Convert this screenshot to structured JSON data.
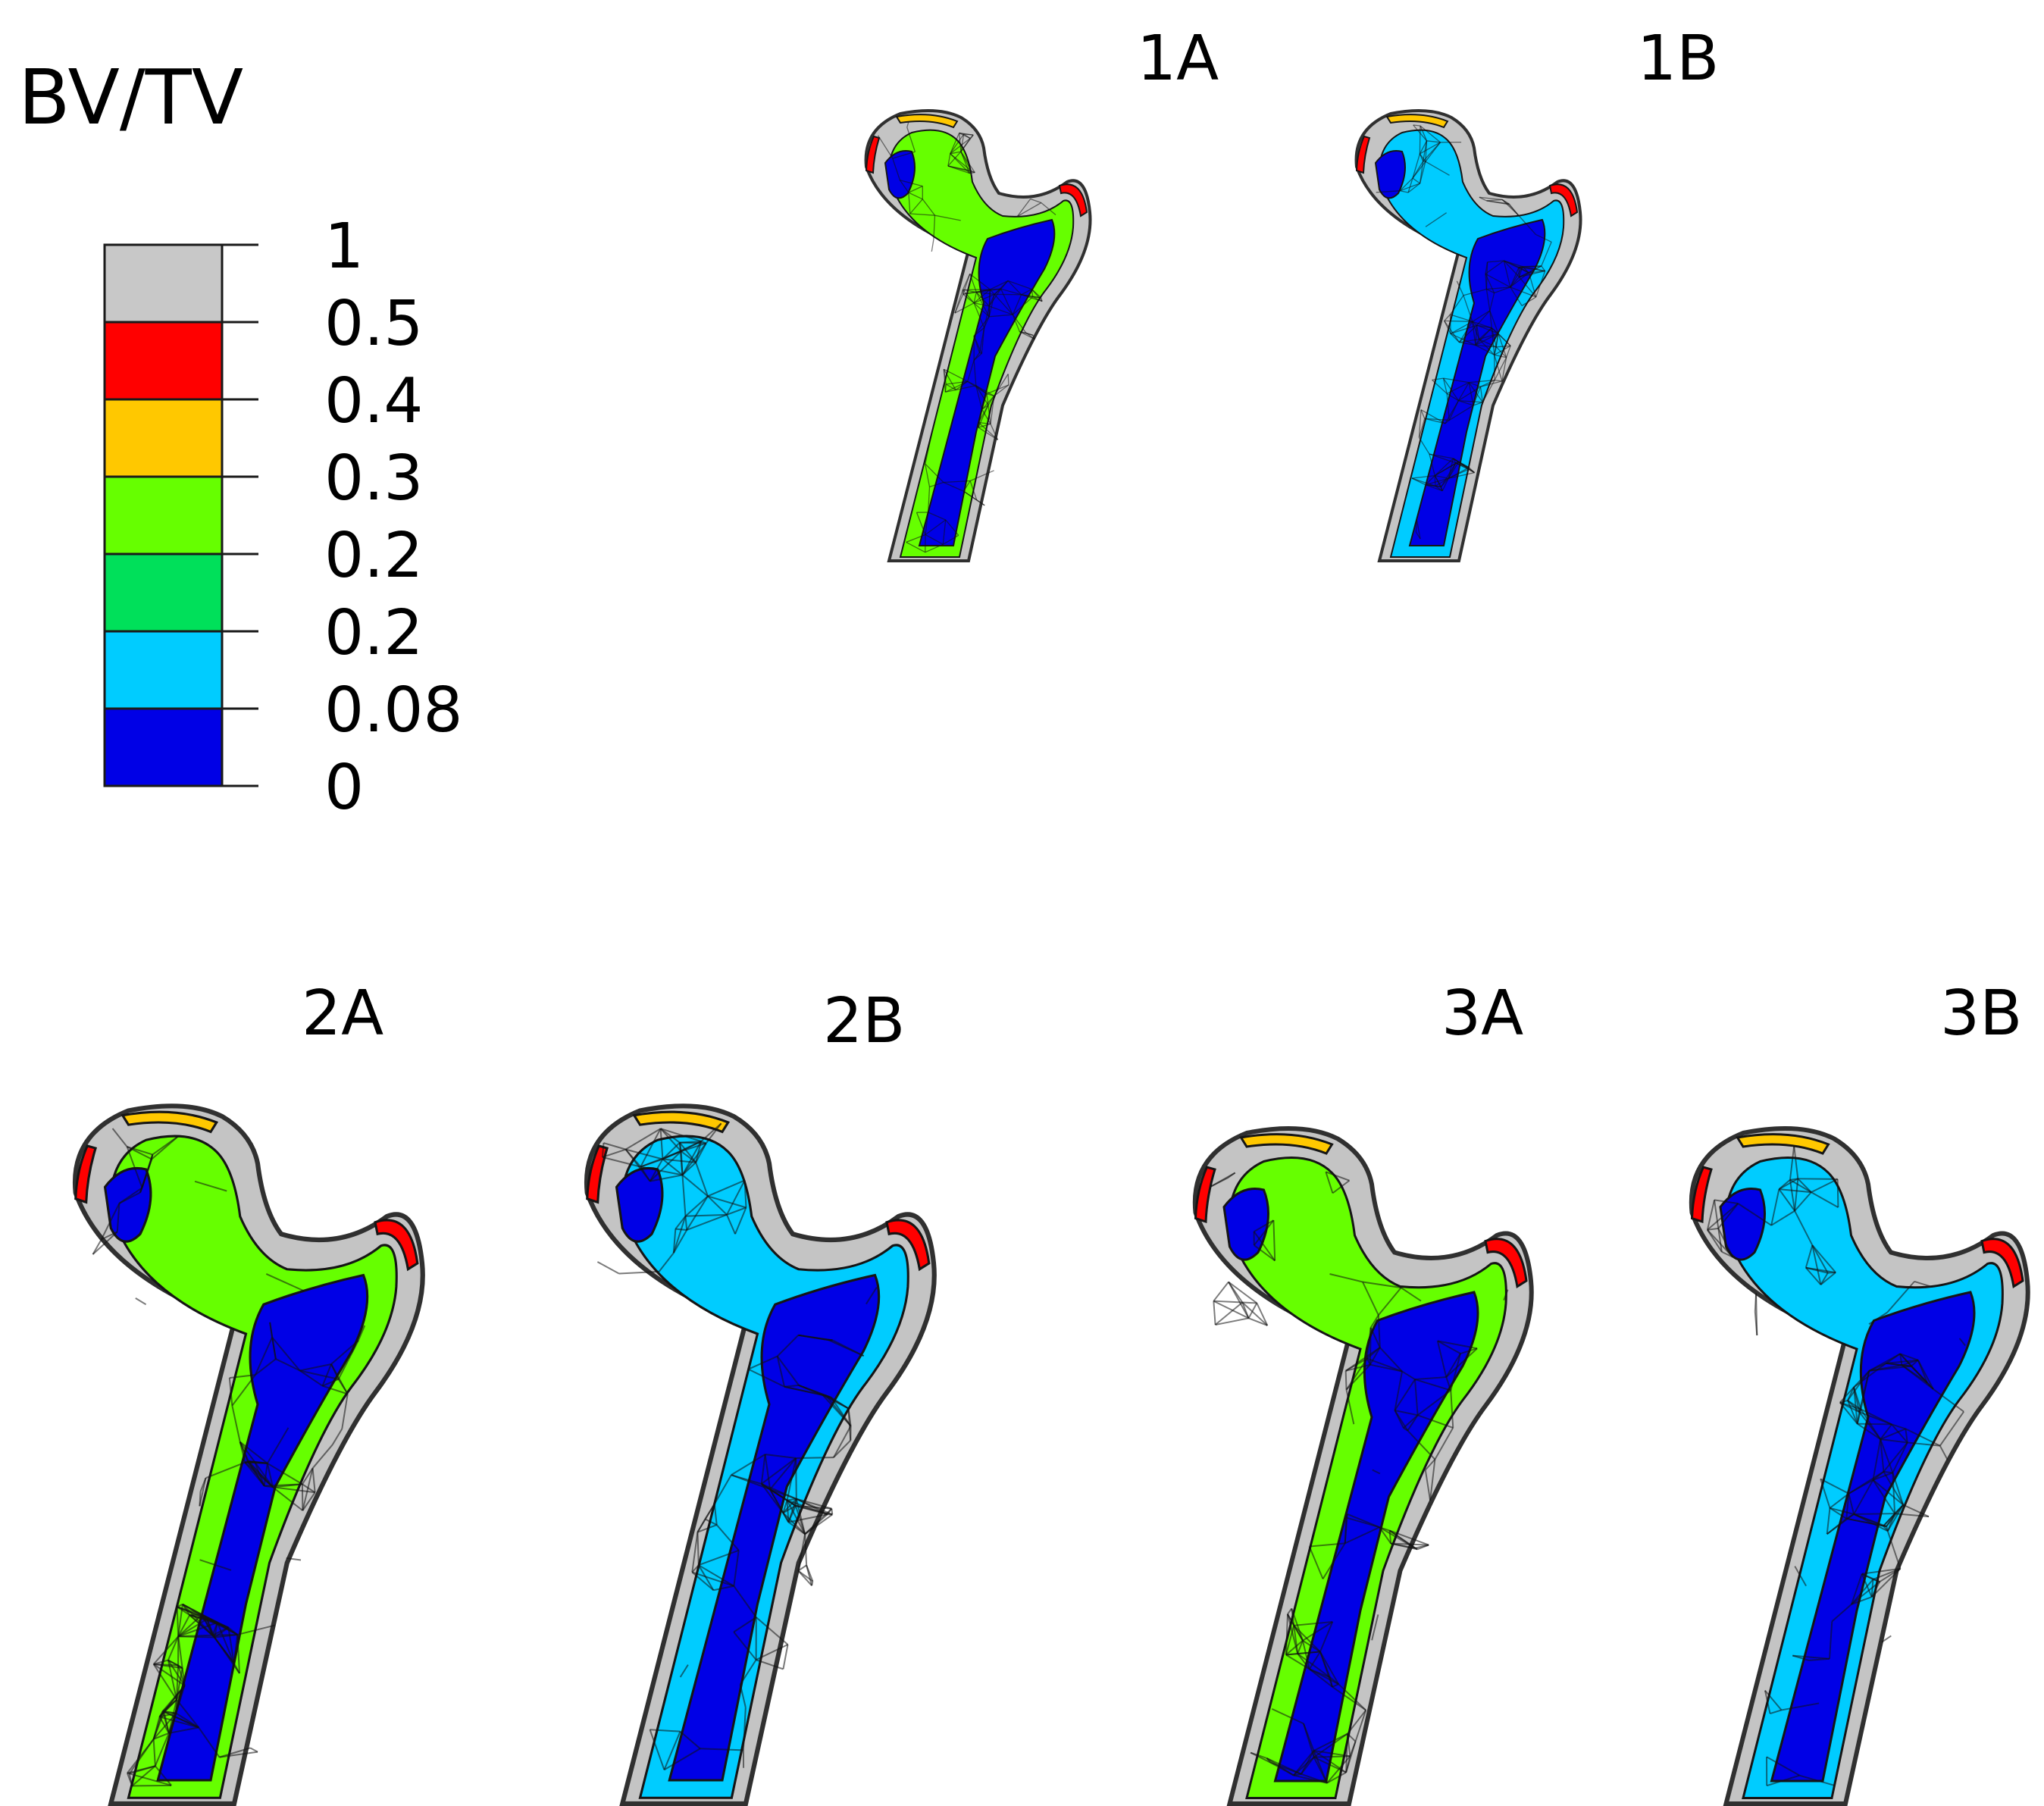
{
  "legend": {
    "title": "BV/TV",
    "bins": [
      {
        "color": "#c8c8c8",
        "upper": "1",
        "lower": "0.5"
      },
      {
        "color": "#ff0000",
        "upper": "0.5",
        "lower": "0.4"
      },
      {
        "color": "#ffc800",
        "upper": "0.4",
        "lower": "0.3"
      },
      {
        "color": "#66ff00",
        "upper": "0.3",
        "lower": "0.2"
      },
      {
        "color": "#00e05a",
        "upper": "0.2",
        "lower": "0.2"
      },
      {
        "color": "#00ccff",
        "upper": "0.2",
        "lower": "0.08"
      },
      {
        "color": "#0000e6",
        "upper": "0.08",
        "lower": "0"
      }
    ],
    "tick_labels": [
      "1",
      "0.5",
      "0.4",
      "0.3",
      "0.2",
      "0.2",
      "0.08",
      "0"
    ]
  },
  "panels": [
    {
      "label": "1A",
      "dominant_color": "#66ff00"
    },
    {
      "label": "1B",
      "dominant_color": "#00ccff"
    },
    {
      "label": "2A",
      "dominant_color": "#66ff00"
    },
    {
      "label": "2B",
      "dominant_color": "#00ccff"
    },
    {
      "label": "3A",
      "dominant_color": "#66ff00"
    },
    {
      "label": "3B",
      "dominant_color": "#00ccff"
    }
  ],
  "colors": {
    "cortex": "#c4c4c4",
    "cancellous_high": "#66ff00",
    "cancellous_mid": "#00ccff",
    "cancellous_low": "#0000e6",
    "highlight_red": "#ff0000",
    "highlight_orange": "#ffc800"
  }
}
